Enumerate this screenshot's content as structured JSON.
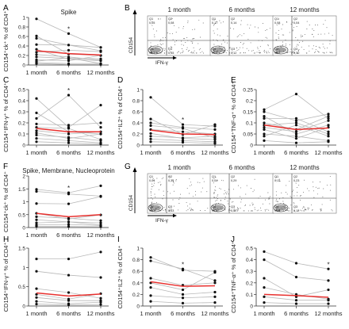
{
  "figure": {
    "row_a_title": "Spike",
    "row_f_title": "Spike, Membrane, Nucleoprotein"
  },
  "colors": {
    "mean_line": "#e8312f",
    "individual_line": "#b8b8b8",
    "point": "#111111",
    "axis": "#333333"
  },
  "chart_data": [
    {
      "panel": "A",
      "type": "line",
      "title": "Spike",
      "ylabel": "CD154⁺ck⁺ % of CD4⁺",
      "categories": [
        "1 month",
        "6 months",
        "12 months"
      ],
      "ylim": [
        0,
        1.0
      ],
      "yticks": [
        0,
        0.2,
        0.4,
        0.6,
        0.8,
        1.0
      ],
      "significance": [
        "",
        "*",
        ""
      ],
      "mean": [
        0.3,
        0.24,
        0.21
      ],
      "series": [
        {
          "values": [
            0.97,
            0.66,
            0.37
          ]
        },
        {
          "values": [
            0.61,
            0.23,
            0.2
          ]
        },
        {
          "values": [
            0.56,
            0.42,
            0.3
          ]
        },
        {
          "values": [
            0.43,
            0.42,
            0.37
          ]
        },
        {
          "values": [
            0.33,
            0.12,
            0.09
          ]
        },
        {
          "values": [
            0.27,
            0.31,
            0.28
          ]
        },
        {
          "values": [
            0.22,
            0.17,
            0.1
          ]
        },
        {
          "values": [
            0.17,
            0.14,
            0.13
          ]
        },
        {
          "values": [
            0.11,
            0.09,
            0.2
          ]
        },
        {
          "values": [
            0.08,
            0.15,
            0.03
          ]
        },
        {
          "values": [
            0.05,
            0.03,
            0.03
          ]
        },
        {
          "values": [
            0.03,
            0.01,
            0.01
          ]
        }
      ]
    },
    {
      "panel": "C",
      "type": "line",
      "ylabel": "CD154⁺IFN-γ⁺ % of CD4⁺",
      "categories": [
        "1 month",
        "6 months",
        "12 months"
      ],
      "ylim": [
        0,
        0.5
      ],
      "yticks": [
        0,
        0.1,
        0.2,
        0.3,
        0.4,
        0.5
      ],
      "significance": [
        "",
        "*",
        ""
      ],
      "mean": [
        0.15,
        0.12,
        0.12
      ],
      "series": [
        {
          "values": [
            0.42,
            0.16,
            0.36
          ]
        },
        {
          "values": [
            0.29,
            0.12,
            0.1
          ]
        },
        {
          "values": [
            0.24,
            0.45,
            0.16
          ]
        },
        {
          "values": [
            0.19,
            0.18,
            0.2
          ]
        },
        {
          "values": [
            0.16,
            0.15,
            0.05
          ]
        },
        {
          "values": [
            0.13,
            0.1,
            0.12
          ]
        },
        {
          "values": [
            0.11,
            0.06,
            0.1
          ]
        },
        {
          "values": [
            0.09,
            0.07,
            0.04
          ]
        },
        {
          "values": [
            0.06,
            0.04,
            0.02
          ]
        },
        {
          "values": [
            0.03,
            0.02,
            0.01
          ]
        }
      ]
    },
    {
      "panel": "D",
      "type": "line",
      "ylabel": "CD154⁺IL2⁺ % of CD4⁺",
      "categories": [
        "1 month",
        "6 months",
        "12 months"
      ],
      "ylim": [
        0,
        1.0
      ],
      "yticks": [
        0,
        0.2,
        0.4,
        0.6,
        0.8,
        1.0
      ],
      "significance": [
        "",
        "*",
        ""
      ],
      "mean": [
        0.27,
        0.2,
        0.19
      ],
      "series": [
        {
          "values": [
            0.86,
            0.37,
            0.34
          ]
        },
        {
          "values": [
            0.47,
            0.19,
            0.37
          ]
        },
        {
          "values": [
            0.4,
            0.32,
            0.28
          ]
        },
        {
          "values": [
            0.35,
            0.3,
            0.13
          ]
        },
        {
          "values": [
            0.28,
            0.24,
            0.2
          ]
        },
        {
          "values": [
            0.21,
            0.12,
            0.1
          ]
        },
        {
          "values": [
            0.16,
            0.13,
            0.16
          ]
        },
        {
          "values": [
            0.11,
            0.08,
            0.06
          ]
        },
        {
          "values": [
            0.06,
            0.05,
            0.03
          ]
        }
      ]
    },
    {
      "panel": "E",
      "type": "line",
      "ylabel": "CD154⁺TNF-α⁺ % of CD4⁺",
      "categories": [
        "1 month",
        "6 months",
        "12 months"
      ],
      "ylim": [
        0,
        0.25
      ],
      "yticks": [
        0,
        0.05,
        0.1,
        0.15,
        0.2,
        0.25
      ],
      "significance": [
        "",
        "",
        ""
      ],
      "mean": [
        0.09,
        0.07,
        0.077
      ],
      "series": [
        {
          "values": [
            0.16,
            0.23,
            0.12
          ]
        },
        {
          "values": [
            0.15,
            0.11,
            0.14
          ]
        },
        {
          "values": [
            0.13,
            0.05,
            0.09
          ]
        },
        {
          "values": [
            0.12,
            0.12,
            0.06
          ]
        },
        {
          "values": [
            0.1,
            0.07,
            0.13
          ]
        },
        {
          "values": [
            0.09,
            0.1,
            0.05
          ]
        },
        {
          "values": [
            0.08,
            0.06,
            0.11
          ]
        },
        {
          "values": [
            0.07,
            0.03,
            0.08
          ]
        },
        {
          "values": [
            0.05,
            0.04,
            0.02
          ]
        },
        {
          "values": [
            0.04,
            0.09,
            0.04
          ]
        },
        {
          "values": [
            0.02,
            0.01,
            0.015
          ]
        }
      ]
    },
    {
      "panel": "F",
      "type": "line",
      "title": "Spike, Membrane, Nucleoprotein",
      "ylabel": "CD154⁺ck⁺ % of CD4⁺",
      "categories": [
        "1 month",
        "6 months",
        "12 months"
      ],
      "ylim": [
        0,
        2.0
      ],
      "yticks": [
        0,
        0.5,
        1.0,
        1.5,
        2.0
      ],
      "significance": [
        "",
        "*",
        ""
      ],
      "mean": [
        0.55,
        0.42,
        0.5
      ],
      "series": [
        {
          "values": [
            1.48,
            1.35,
            1.62
          ]
        },
        {
          "values": [
            1.4,
            1.3,
            1.22
          ]
        },
        {
          "values": [
            0.93,
            0.92,
            1.2
          ]
        },
        {
          "values": [
            0.55,
            0.33,
            0.49
          ]
        },
        {
          "values": [
            0.42,
            0.36,
            0.27
          ]
        },
        {
          "values": [
            0.3,
            0.22,
            0.18
          ]
        },
        {
          "values": [
            0.18,
            0.22,
            0.1
          ]
        },
        {
          "values": [
            0.1,
            0.12,
            0.08
          ]
        },
        {
          "values": [
            0.05,
            0.04,
            0.03
          ]
        }
      ]
    },
    {
      "panel": "H",
      "type": "line",
      "ylabel": "CD154⁺IFN-γ⁺ % of CD4⁺",
      "categories": [
        "1 month",
        "6 months",
        "12 months"
      ],
      "ylim": [
        0,
        1.5
      ],
      "yticks": [
        0,
        0.5,
        1.0,
        1.5
      ],
      "significance": [
        "",
        "",
        ""
      ],
      "mean": [
        0.34,
        0.26,
        0.31
      ],
      "series": [
        {
          "values": [
            1.22,
            1.22,
            1.4
          ]
        },
        {
          "values": [
            0.9,
            0.8,
            0.74
          ]
        },
        {
          "values": [
            0.45,
            0.35,
            0.2
          ]
        },
        {
          "values": [
            0.3,
            0.18,
            0.32
          ]
        },
        {
          "values": [
            0.22,
            0.14,
            0.14
          ]
        },
        {
          "values": [
            0.12,
            0.06,
            0.1
          ]
        },
        {
          "values": [
            0.05,
            0.03,
            0.04
          ]
        }
      ]
    },
    {
      "panel": "I",
      "type": "line",
      "ylabel": "CD154⁺IL2⁺ % of CD4⁺",
      "categories": [
        "1 month",
        "6 months",
        "12 months"
      ],
      "ylim": [
        0,
        1.0
      ],
      "yticks": [
        0,
        0.2,
        0.4,
        0.6,
        0.8,
        1.0
      ],
      "significance": [
        "",
        "*",
        ""
      ],
      "mean": [
        0.42,
        0.34,
        0.35
      ],
      "series": [
        {
          "values": [
            0.84,
            0.62,
            0.6
          ]
        },
        {
          "values": [
            0.78,
            0.64,
            0.44
          ]
        },
        {
          "values": [
            0.48,
            0.36,
            0.4
          ]
        },
        {
          "values": [
            0.4,
            0.28,
            0.58
          ]
        },
        {
          "values": [
            0.32,
            0.2,
            0.24
          ]
        },
        {
          "values": [
            0.18,
            0.14,
            0.16
          ]
        },
        {
          "values": [
            0.08,
            0.05,
            0.06
          ]
        }
      ]
    },
    {
      "panel": "J",
      "type": "line",
      "ylabel": "CD154⁺TNF-α⁺ % of CD4⁺",
      "categories": [
        "1 month",
        "6 months",
        "12 months"
      ],
      "ylim": [
        0,
        0.5
      ],
      "yticks": [
        0,
        0.1,
        0.2,
        0.3,
        0.4,
        0.5
      ],
      "significance": [
        "",
        "",
        "*"
      ],
      "mean": [
        0.1,
        0.09,
        0.075
      ],
      "series": [
        {
          "values": [
            0.47,
            0.37,
            0.32
          ]
        },
        {
          "values": [
            0.4,
            0.25,
            0.22
          ]
        },
        {
          "values": [
            0.24,
            0.08,
            0.14
          ]
        },
        {
          "values": [
            0.16,
            0.1,
            0.06
          ]
        },
        {
          "values": [
            0.08,
            0.05,
            0.05
          ]
        },
        {
          "values": [
            0.03,
            0.02,
            0.02
          ]
        }
      ]
    }
  ],
  "flow_rows": [
    {
      "panel": "B",
      "ylabel": "CD154",
      "xlabel": "IFN-γ",
      "plots": [
        {
          "title": "1 month",
          "q": [
            "Q1",
            "Q2",
            "Q3",
            "Q4"
          ],
          "values": [
            "0,05",
            "0,08",
            "0,15",
            "99,7"
          ]
        },
        {
          "title": "6 months",
          "q": [
            "Q1",
            "Q2",
            "Q3",
            "Q4"
          ],
          "values": [
            "0,17",
            "0,14",
            "0,12",
            "99,6"
          ]
        },
        {
          "title": "12 months",
          "q": [
            "Q1",
            "Q2",
            "Q3",
            "Q4"
          ],
          "values": [
            "0,08",
            "0,04",
            "0,10",
            "99,8"
          ]
        }
      ]
    },
    {
      "panel": "G",
      "ylabel": "CD154",
      "xlabel": "IFN-γ",
      "plots": [
        {
          "title": "1 month",
          "q": [
            "Q1",
            "Q2",
            "Q3",
            "Q4"
          ],
          "values": [
            "0,04",
            "0,34",
            "0,33",
            "99,3"
          ]
        },
        {
          "title": "6 months",
          "q": [
            "Q1",
            "Q2",
            "Q3",
            "Q4"
          ],
          "values": [
            "0,04",
            "0,29",
            "0,077",
            "99,6"
          ]
        },
        {
          "title": "12 months",
          "q": [
            "Q1",
            "Q2",
            "Q3",
            "Q4"
          ],
          "values": [
            "0,11",
            "0,23",
            "0,12",
            "99,5"
          ]
        }
      ]
    }
  ]
}
